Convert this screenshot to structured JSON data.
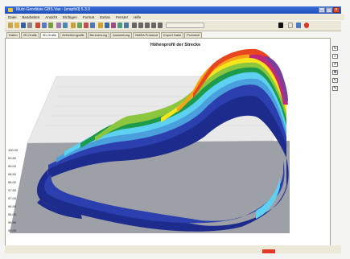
{
  "window": {
    "title": "Mutz-Geodäsie GBS.Vas - [erapfx0] 5.3.0"
  },
  "menu": [
    "Datei",
    "Bearbeiten",
    "Ansicht",
    "Einfügen",
    "Format",
    "Extras",
    "Fenster",
    "Hilfe"
  ],
  "tabs": [
    {
      "label": "Daten"
    },
    {
      "label": "2D-Grafik"
    },
    {
      "label": "3D-Grafik"
    },
    {
      "label": "Zeitreihengrafik"
    },
    {
      "label": "Berechnung"
    },
    {
      "label": "Auswertung"
    },
    {
      "label": "NMEA Protokoll"
    },
    {
      "label": "Export Datei"
    },
    {
      "label": "Protokoll"
    }
  ],
  "chart": {
    "title": "Höhenprofil der Strecke",
    "ticks": [
      "100.00",
      "99.50",
      "99.00",
      "98.50",
      "98.00",
      "97.50",
      "97.00",
      "96.50",
      "96.00",
      "95.50",
      "95.00"
    ]
  },
  "colors": {
    "bands": [
      "#1c2b8c",
      "#2b3fae",
      "#4aa0dd",
      "#5ed0f0",
      "#1d9a4a",
      "#8cc63f",
      "#f5e51c",
      "#f7a21b",
      "#e8461f",
      "#c0287a",
      "#7c3f99"
    ]
  }
}
